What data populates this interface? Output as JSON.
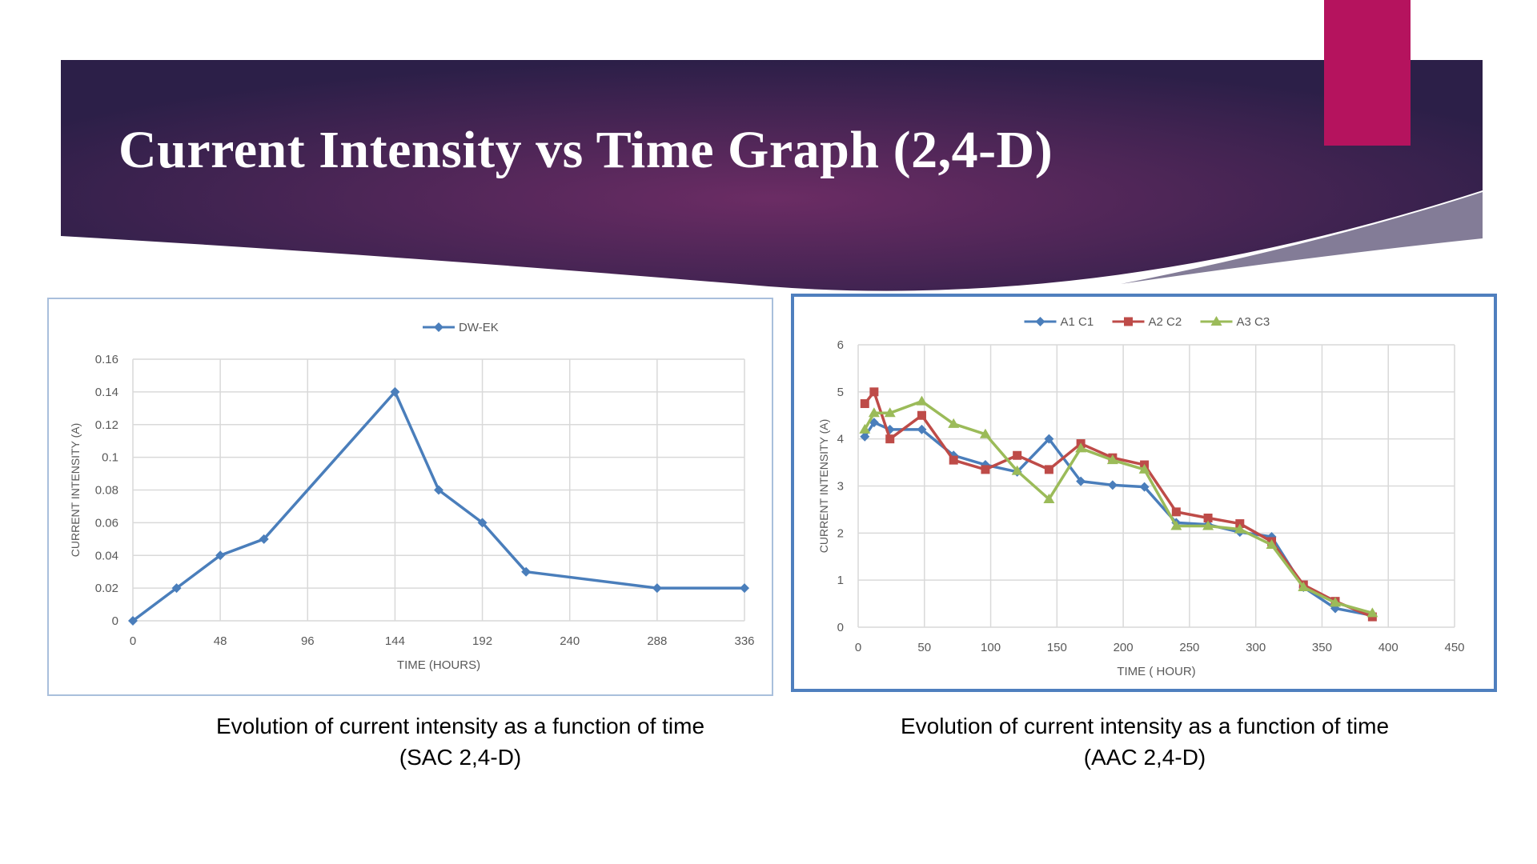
{
  "slide": {
    "title": "Current Intensity vs Time Graph (2,4-D)",
    "colors": {
      "banner_dark": "#2c1f48",
      "banner_mid": "#6b2c64",
      "accent_tab": "#b5135e"
    }
  },
  "captions": {
    "left_line1": "Evolution of current intensity as a function of time",
    "left_line2": "(SAC 2,4-D)",
    "right_line1": "Evolution of current intensity as a function of time",
    "right_line2": "(AAC 2,4-D)"
  },
  "chart_data": [
    {
      "type": "line",
      "title": "",
      "xlabel": "TIME (HOURS)",
      "ylabel": "CURRENT INTENSITY (A)",
      "xlim": [
        0,
        336
      ],
      "ylim": [
        0,
        0.16
      ],
      "x_ticks": [
        0,
        48,
        96,
        144,
        192,
        240,
        288,
        336
      ],
      "y_ticks": [
        0,
        0.02,
        0.04,
        0.06,
        0.08,
        0.1,
        0.12,
        0.14,
        0.16
      ],
      "y_tick_labels": [
        "0",
        "0.02",
        "0.04",
        "0.06",
        "0.08",
        "0.1",
        "0.12",
        "0.14",
        "0.16"
      ],
      "grid": true,
      "legend": "top-center",
      "series": [
        {
          "name": "DW-EK",
          "color": "#4a7ebb",
          "marker": "diamond",
          "x": [
            0,
            24,
            48,
            72,
            144,
            168,
            192,
            216,
            288,
            336
          ],
          "y": [
            0,
            0.02,
            0.04,
            0.05,
            0.14,
            0.08,
            0.06,
            0.03,
            0.02,
            0.02
          ]
        }
      ]
    },
    {
      "type": "line",
      "title": "",
      "xlabel": "TIME ( HOUR)",
      "ylabel": "CURRENT INTENSITY (A)",
      "xlim": [
        0,
        450
      ],
      "ylim": [
        0,
        6
      ],
      "x_ticks": [
        0,
        50,
        100,
        150,
        200,
        250,
        300,
        350,
        400,
        450
      ],
      "y_ticks": [
        0,
        1,
        2,
        3,
        4,
        5,
        6
      ],
      "y_tick_labels": [
        "0",
        "1",
        "2",
        "3",
        "4",
        "5",
        "6"
      ],
      "grid": true,
      "legend": "top-center",
      "series": [
        {
          "name": "A1 C1",
          "color": "#4a7ebb",
          "marker": "diamond",
          "x": [
            5,
            12,
            24,
            48,
            72,
            96,
            120,
            144,
            168,
            192,
            216,
            240,
            264,
            288,
            312,
            336,
            360,
            388
          ],
          "y": [
            4.05,
            4.35,
            4.2,
            4.2,
            3.65,
            3.45,
            3.3,
            4.0,
            3.1,
            3.02,
            2.98,
            2.22,
            2.18,
            2.02,
            1.92,
            0.85,
            0.4,
            0.25
          ]
        },
        {
          "name": "A2 C2",
          "color": "#be4b48",
          "marker": "square",
          "x": [
            5,
            12,
            24,
            48,
            72,
            96,
            120,
            144,
            168,
            192,
            216,
            240,
            264,
            288,
            312,
            336,
            360,
            388
          ],
          "y": [
            4.75,
            5.0,
            4.0,
            4.5,
            3.55,
            3.35,
            3.65,
            3.35,
            3.9,
            3.6,
            3.45,
            2.45,
            2.32,
            2.2,
            1.82,
            0.9,
            0.55,
            0.22
          ]
        },
        {
          "name": "A3 C3",
          "color": "#9bbb59",
          "marker": "triangle",
          "x": [
            5,
            12,
            24,
            48,
            72,
            96,
            120,
            144,
            168,
            192,
            216,
            240,
            264,
            288,
            312,
            336,
            360,
            388
          ],
          "y": [
            4.2,
            4.55,
            4.55,
            4.8,
            4.32,
            4.1,
            3.32,
            2.72,
            3.8,
            3.55,
            3.35,
            2.15,
            2.15,
            2.08,
            1.75,
            0.85,
            0.52,
            0.3
          ]
        }
      ]
    }
  ]
}
